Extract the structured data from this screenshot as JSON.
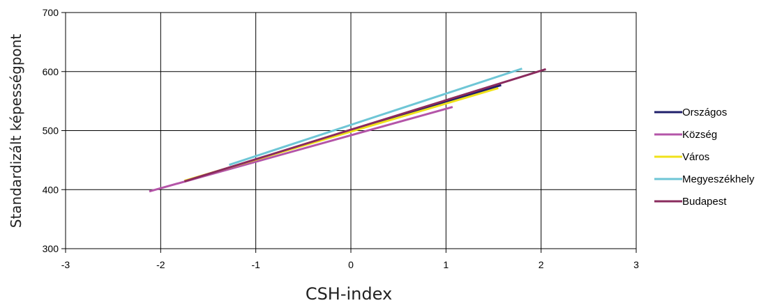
{
  "chart_data": {
    "type": "line",
    "title": "",
    "xlabel": "CSH-index",
    "ylabel": "Standardizált képességpont",
    "xlim": [
      -3,
      3
    ],
    "ylim": [
      300,
      700
    ],
    "x_ticks": [
      -3,
      -2,
      -1,
      0,
      1,
      2,
      3
    ],
    "y_ticks": [
      300,
      400,
      500,
      600,
      700
    ],
    "grid": true,
    "legend_position": "right",
    "series": [
      {
        "name": "Országos",
        "color": "#1f1f6b",
        "x": [
          -1.75,
          1.58
        ],
        "y": [
          414,
          577
        ]
      },
      {
        "name": "Község",
        "color": "#b455a8",
        "x": [
          -2.12,
          1.07
        ],
        "y": [
          397,
          540
        ]
      },
      {
        "name": "Város",
        "color": "#f0e21a",
        "x": [
          -1.75,
          1.55
        ],
        "y": [
          415,
          572
        ]
      },
      {
        "name": "Megyeszékhely",
        "color": "#6ec6d6",
        "x": [
          -1.28,
          1.8
        ],
        "y": [
          442,
          605
        ]
      },
      {
        "name": "Budapest",
        "color": "#8a2b5e",
        "x": [
          -1.75,
          2.05
        ],
        "y": [
          414,
          604
        ]
      }
    ]
  }
}
